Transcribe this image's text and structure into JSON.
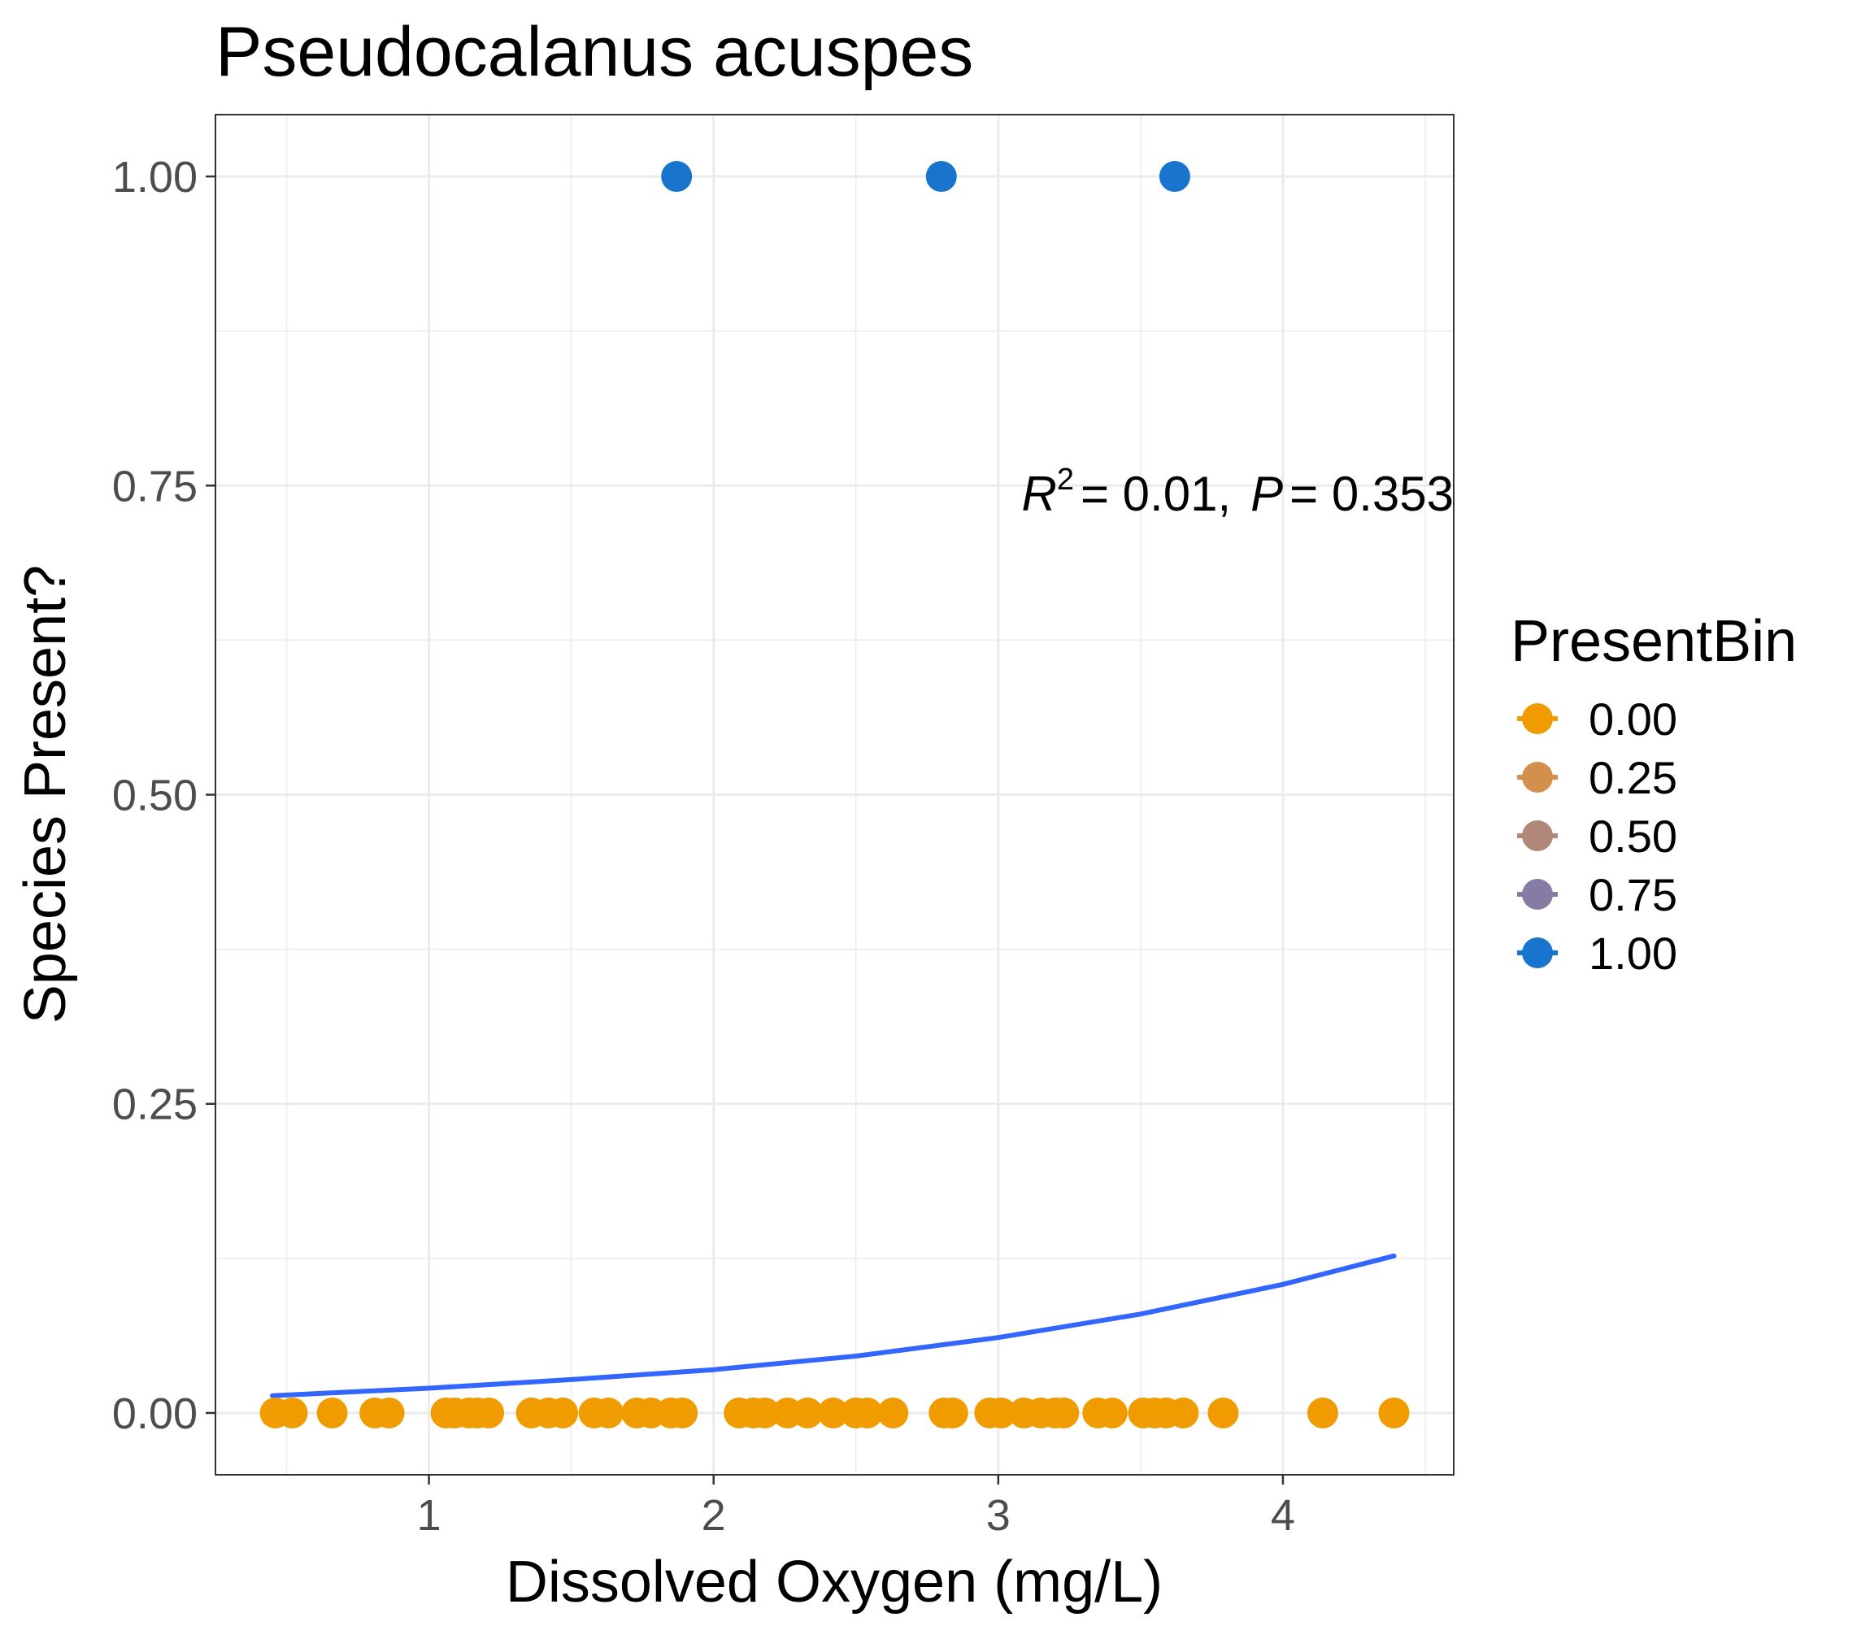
{
  "chart_data": {
    "type": "scatter",
    "title": "Pseudocalanus acuspes",
    "xlabel": "Dissolved Oxygen (mg/L)",
    "ylabel": "Species Present?",
    "xlim": [
      0.25,
      4.6
    ],
    "ylim": [
      -0.05,
      1.05
    ],
    "x_ticks": [
      1,
      2,
      3,
      4
    ],
    "x_tick_labels": [
      "1",
      "2",
      "3",
      "4"
    ],
    "y_ticks": [
      0,
      0.25,
      0.5,
      0.75,
      1
    ],
    "y_tick_labels": [
      "0.00",
      "0.25",
      "0.50",
      "0.75",
      "1.00"
    ],
    "grid": true,
    "legend": {
      "title": "PresentBin",
      "position": "right",
      "entries": [
        {
          "label": "0.00",
          "color": "#f09c00"
        },
        {
          "label": "0.25",
          "color": "#d38f4c"
        },
        {
          "label": "0.50",
          "color": "#b1877a"
        },
        {
          "label": "0.75",
          "color": "#857ba4"
        },
        {
          "label": "1.00",
          "color": "#1874cd"
        }
      ]
    },
    "annotation": {
      "r2_symbol": "R",
      "r2_sup": "2",
      "r2_value": "= 0.01,",
      "p_symbol": "P",
      "p_value": "= 0.353"
    },
    "series": [
      {
        "presentbin": 0,
        "color": "#f09c00",
        "x": [
          0.46,
          0.52,
          0.66,
          0.81,
          0.86,
          1.06,
          1.09,
          1.14,
          1.17,
          1.21,
          1.36,
          1.42,
          1.47,
          1.58,
          1.63,
          1.73,
          1.78,
          1.85,
          1.89,
          2.09,
          2.14,
          2.18,
          2.26,
          2.33,
          2.42,
          2.5,
          2.54,
          2.63,
          2.81,
          2.84,
          2.97,
          3.01,
          3.09,
          3.15,
          3.2,
          3.23,
          3.35,
          3.4,
          3.51,
          3.55,
          3.59,
          3.65,
          3.79,
          4.14,
          4.39
        ],
        "y": [
          0,
          0,
          0,
          0,
          0,
          0,
          0,
          0,
          0,
          0,
          0,
          0,
          0,
          0,
          0,
          0,
          0,
          0,
          0,
          0,
          0,
          0,
          0,
          0,
          0,
          0,
          0,
          0,
          0,
          0,
          0,
          0,
          0,
          0,
          0,
          0,
          0,
          0,
          0,
          0,
          0,
          0,
          0,
          0,
          0
        ]
      },
      {
        "presentbin": 1,
        "color": "#1874cd",
        "x": [
          1.87,
          2.8,
          3.62
        ],
        "y": [
          1,
          1,
          1
        ]
      }
    ],
    "fit_line": {
      "color": "#3366ff",
      "x": [
        0.45,
        1.0,
        1.5,
        2.0,
        2.5,
        3.0,
        3.5,
        4.0,
        4.39
      ],
      "y": [
        0.014,
        0.02,
        0.027,
        0.035,
        0.046,
        0.061,
        0.08,
        0.104,
        0.127
      ]
    }
  }
}
